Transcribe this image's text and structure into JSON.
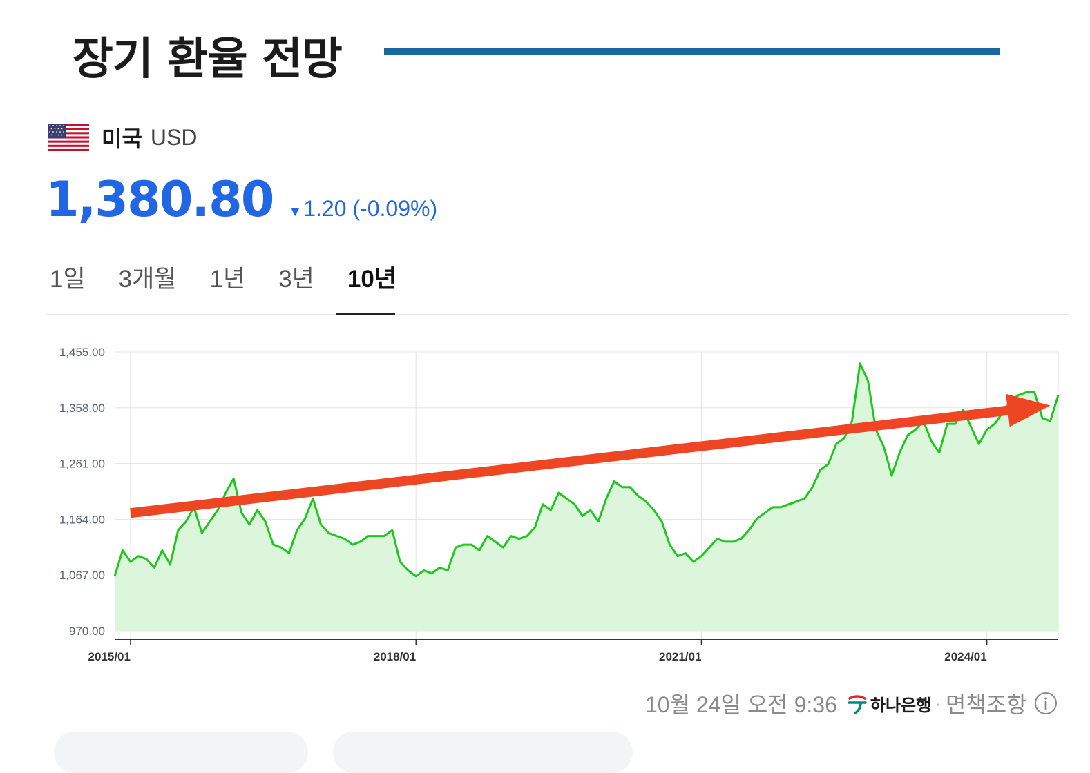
{
  "title": "장기 환율 전망",
  "currency": {
    "country": "미국",
    "code": "USD",
    "flag_icon": "us-flag-icon"
  },
  "price": {
    "value": "1,380.80",
    "direction": "down",
    "change": "1.20 (-0.09%)"
  },
  "tabs": [
    {
      "label": "1일",
      "active": false
    },
    {
      "label": "3개월",
      "active": false
    },
    {
      "label": "1년",
      "active": false
    },
    {
      "label": "3년",
      "active": false
    },
    {
      "label": "10년",
      "active": true
    }
  ],
  "colors": {
    "accent": "#2166e5",
    "title_rule": "#1767a3",
    "line": "#1ec71e",
    "area": "#dcf6dc",
    "arrow": "#ee4523"
  },
  "chart_data": {
    "type": "area",
    "title": "",
    "xlabel": "",
    "ylabel": "",
    "ylim": [
      970,
      1455
    ],
    "yticks": [
      970,
      1067,
      1164,
      1261,
      1358,
      1455
    ],
    "ytick_labels": [
      "970.00",
      "1,067.00",
      "1,164.00",
      "1,261.00",
      "1,358.00",
      "1,455.00"
    ],
    "xlim": [
      "2014-11",
      "2024-10"
    ],
    "xticks": [
      "2015-01",
      "2018-01",
      "2021-01",
      "2024-01"
    ],
    "xtick_labels": [
      "2015/01",
      "2018/01",
      "2021/01",
      "2024/01"
    ],
    "grid": true,
    "series": [
      {
        "x": [
          "2014-11",
          "2014-12",
          "2015-01",
          "2015-02",
          "2015-03",
          "2015-04",
          "2015-05",
          "2015-06",
          "2015-07",
          "2015-08",
          "2015-09",
          "2015-10",
          "2015-11",
          "2015-12",
          "2016-01",
          "2016-02",
          "2016-03",
          "2016-04",
          "2016-05",
          "2016-06",
          "2016-07",
          "2016-08",
          "2016-09",
          "2016-10",
          "2016-11",
          "2016-12",
          "2017-01",
          "2017-02",
          "2017-03",
          "2017-04",
          "2017-05",
          "2017-06",
          "2017-07",
          "2017-08",
          "2017-09",
          "2017-10",
          "2017-11",
          "2017-12",
          "2018-01",
          "2018-02",
          "2018-03",
          "2018-04",
          "2018-05",
          "2018-06",
          "2018-07",
          "2018-08",
          "2018-09",
          "2018-10",
          "2018-11",
          "2018-12",
          "2019-01",
          "2019-02",
          "2019-03",
          "2019-04",
          "2019-05",
          "2019-06",
          "2019-07",
          "2019-08",
          "2019-09",
          "2019-10",
          "2019-11",
          "2019-12",
          "2020-01",
          "2020-02",
          "2020-03",
          "2020-04",
          "2020-05",
          "2020-06",
          "2020-07",
          "2020-08",
          "2020-09",
          "2020-10",
          "2020-11",
          "2020-12",
          "2021-01",
          "2021-02",
          "2021-03",
          "2021-04",
          "2021-05",
          "2021-06",
          "2021-07",
          "2021-08",
          "2021-09",
          "2021-10",
          "2021-11",
          "2021-12",
          "2022-01",
          "2022-02",
          "2022-03",
          "2022-04",
          "2022-05",
          "2022-06",
          "2022-07",
          "2022-08",
          "2022-09",
          "2022-10",
          "2022-11",
          "2022-12",
          "2023-01",
          "2023-02",
          "2023-03",
          "2023-04",
          "2023-05",
          "2023-06",
          "2023-07",
          "2023-08",
          "2023-09",
          "2023-10",
          "2023-11",
          "2023-12",
          "2024-01",
          "2024-02",
          "2024-03",
          "2024-04",
          "2024-05",
          "2024-06",
          "2024-07",
          "2024-08",
          "2024-09",
          "2024-10"
        ],
        "values": [
          1065,
          1110,
          1090,
          1100,
          1095,
          1080,
          1110,
          1085,
          1145,
          1160,
          1185,
          1140,
          1160,
          1180,
          1210,
          1235,
          1175,
          1155,
          1180,
          1160,
          1120,
          1115,
          1105,
          1145,
          1165,
          1200,
          1155,
          1140,
          1135,
          1130,
          1120,
          1125,
          1135,
          1135,
          1135,
          1145,
          1090,
          1075,
          1065,
          1075,
          1070,
          1080,
          1075,
          1115,
          1120,
          1120,
          1110,
          1135,
          1125,
          1115,
          1135,
          1130,
          1135,
          1150,
          1190,
          1180,
          1210,
          1200,
          1190,
          1170,
          1180,
          1160,
          1200,
          1230,
          1220,
          1220,
          1205,
          1195,
          1180,
          1160,
          1120,
          1100,
          1105,
          1090,
          1100,
          1115,
          1130,
          1125,
          1125,
          1130,
          1145,
          1165,
          1175,
          1185,
          1185,
          1190,
          1195,
          1200,
          1220,
          1250,
          1260,
          1295,
          1305,
          1335,
          1435,
          1405,
          1320,
          1290,
          1240,
          1280,
          1310,
          1320,
          1335,
          1300,
          1280,
          1330,
          1330,
          1355,
          1325,
          1295,
          1320,
          1330,
          1350,
          1370,
          1380,
          1385,
          1385,
          1340,
          1335,
          1380
        ]
      }
    ],
    "annotations": [
      {
        "type": "arrow",
        "from": [
          "2015-01",
          1175
        ],
        "to": [
          "2024-09",
          1362
        ],
        "color": "#ee4523"
      }
    ]
  },
  "footer": {
    "timestamp": "10월 24일 오전 9:36",
    "bank": "하나은행",
    "separator": "·",
    "disclaimer": "면책조항"
  }
}
